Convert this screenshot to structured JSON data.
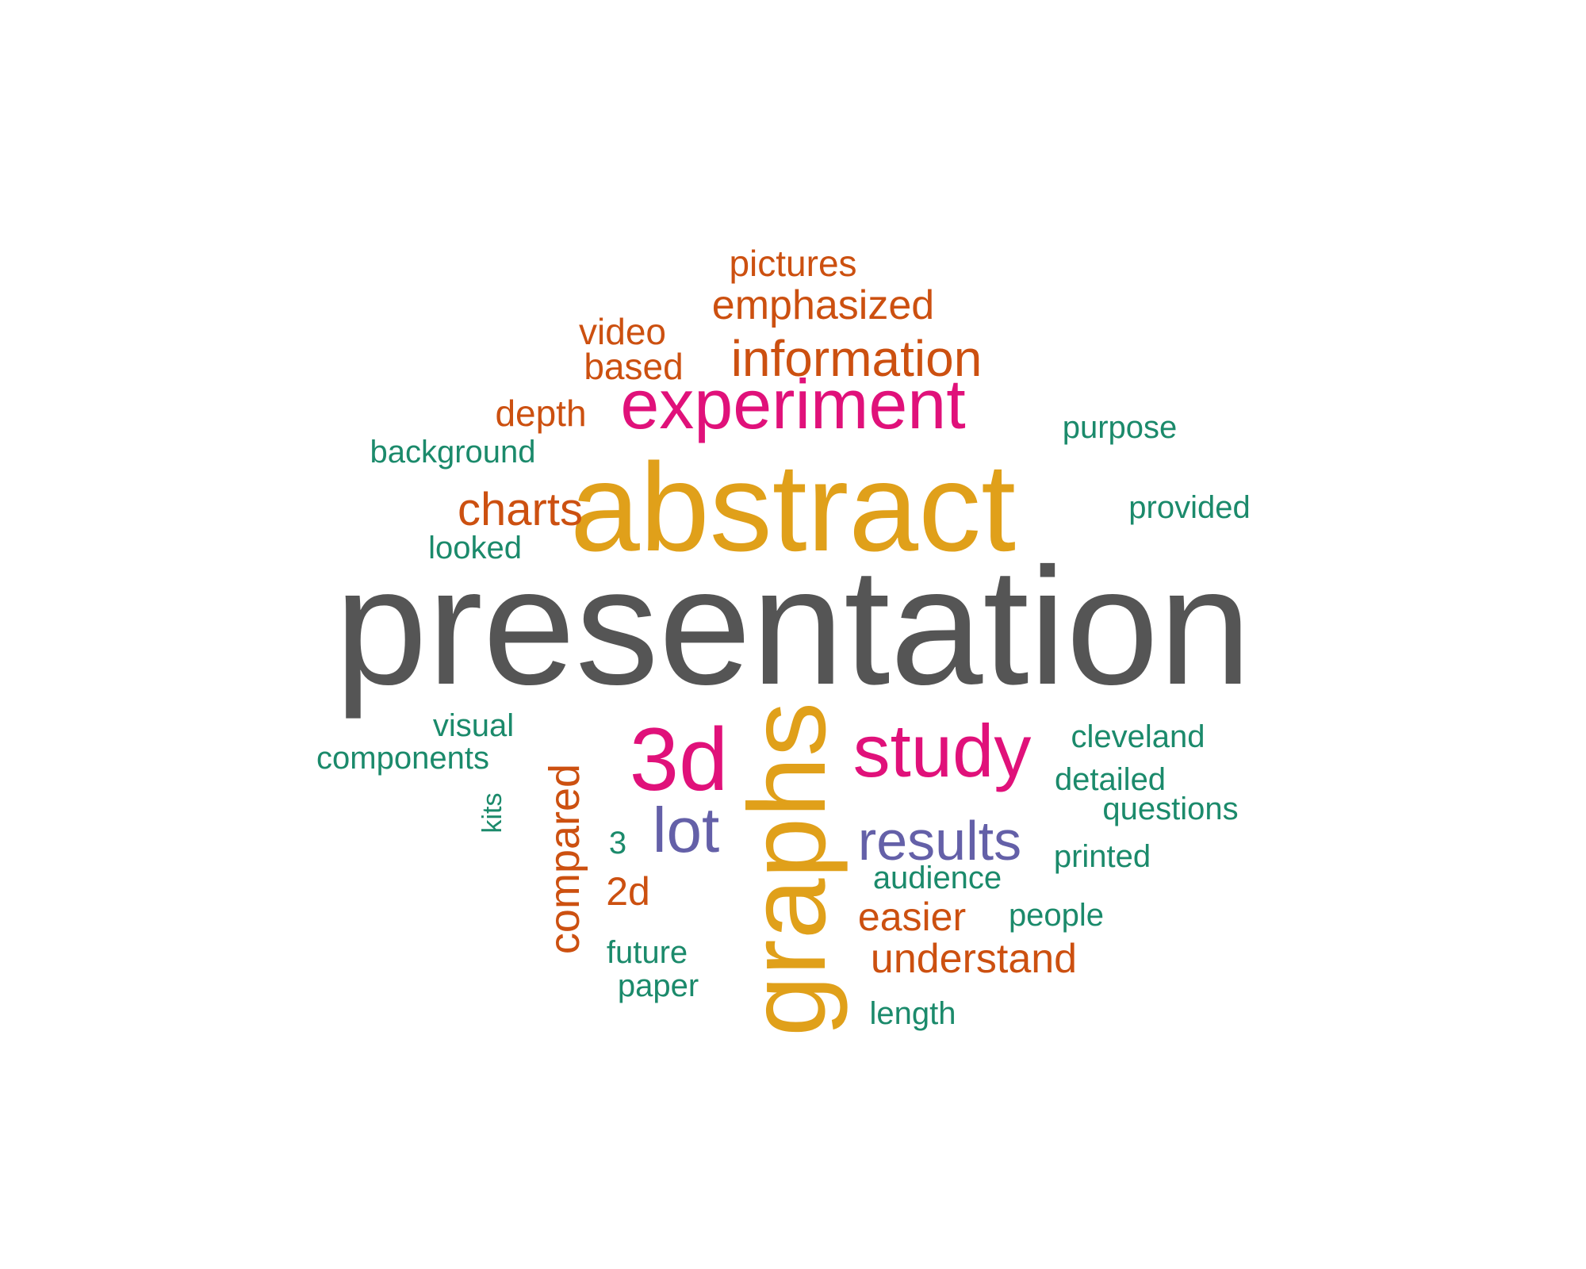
{
  "colors": {
    "dark": "#555555",
    "gold": "#E0A01A",
    "magenta": "#E0117A",
    "orange": "#CC5010",
    "green": "#1B8A6B",
    "purple": "#6460A8"
  },
  "words": [
    {
      "id": "presentation",
      "text": "presentation",
      "color": "dark"
    },
    {
      "id": "abstract",
      "text": "abstract",
      "color": "gold"
    },
    {
      "id": "graphs",
      "text": "graphs",
      "color": "gold"
    },
    {
      "id": "experiment",
      "text": "experiment",
      "color": "magenta"
    },
    {
      "id": "3d",
      "text": "3d",
      "color": "magenta"
    },
    {
      "id": "study",
      "text": "study",
      "color": "magenta"
    },
    {
      "id": "lot",
      "text": "lot",
      "color": "purple"
    },
    {
      "id": "results",
      "text": "results",
      "color": "purple"
    },
    {
      "id": "information",
      "text": "information",
      "color": "orange"
    },
    {
      "id": "emphasized",
      "text": "emphasized",
      "color": "orange"
    },
    {
      "id": "pictures",
      "text": "pictures",
      "color": "orange"
    },
    {
      "id": "video",
      "text": "video",
      "color": "orange"
    },
    {
      "id": "based",
      "text": "based",
      "color": "orange"
    },
    {
      "id": "depth",
      "text": "depth",
      "color": "orange"
    },
    {
      "id": "charts",
      "text": "charts",
      "color": "orange"
    },
    {
      "id": "compared",
      "text": "compared",
      "color": "orange"
    },
    {
      "id": "2d",
      "text": "2d",
      "color": "orange"
    },
    {
      "id": "easier",
      "text": "easier",
      "color": "orange"
    },
    {
      "id": "understand",
      "text": "understand",
      "color": "orange"
    },
    {
      "id": "background",
      "text": "background",
      "color": "green"
    },
    {
      "id": "looked",
      "text": "looked",
      "color": "green"
    },
    {
      "id": "purpose",
      "text": "purpose",
      "color": "green"
    },
    {
      "id": "provided",
      "text": "provided",
      "color": "green"
    },
    {
      "id": "visual",
      "text": "visual",
      "color": "green"
    },
    {
      "id": "components",
      "text": "components",
      "color": "green"
    },
    {
      "id": "kits",
      "text": "kits",
      "color": "green"
    },
    {
      "id": "3",
      "text": "3",
      "color": "green"
    },
    {
      "id": "future",
      "text": "future",
      "color": "green"
    },
    {
      "id": "paper",
      "text": "paper",
      "color": "green"
    },
    {
      "id": "cleveland",
      "text": "cleveland",
      "color": "green"
    },
    {
      "id": "detailed",
      "text": "detailed",
      "color": "green"
    },
    {
      "id": "questions",
      "text": "questions",
      "color": "green"
    },
    {
      "id": "printed",
      "text": "printed",
      "color": "green"
    },
    {
      "id": "audience",
      "text": "audience",
      "color": "green"
    },
    {
      "id": "people",
      "text": "people",
      "color": "green"
    },
    {
      "id": "length",
      "text": "length",
      "color": "green"
    }
  ]
}
